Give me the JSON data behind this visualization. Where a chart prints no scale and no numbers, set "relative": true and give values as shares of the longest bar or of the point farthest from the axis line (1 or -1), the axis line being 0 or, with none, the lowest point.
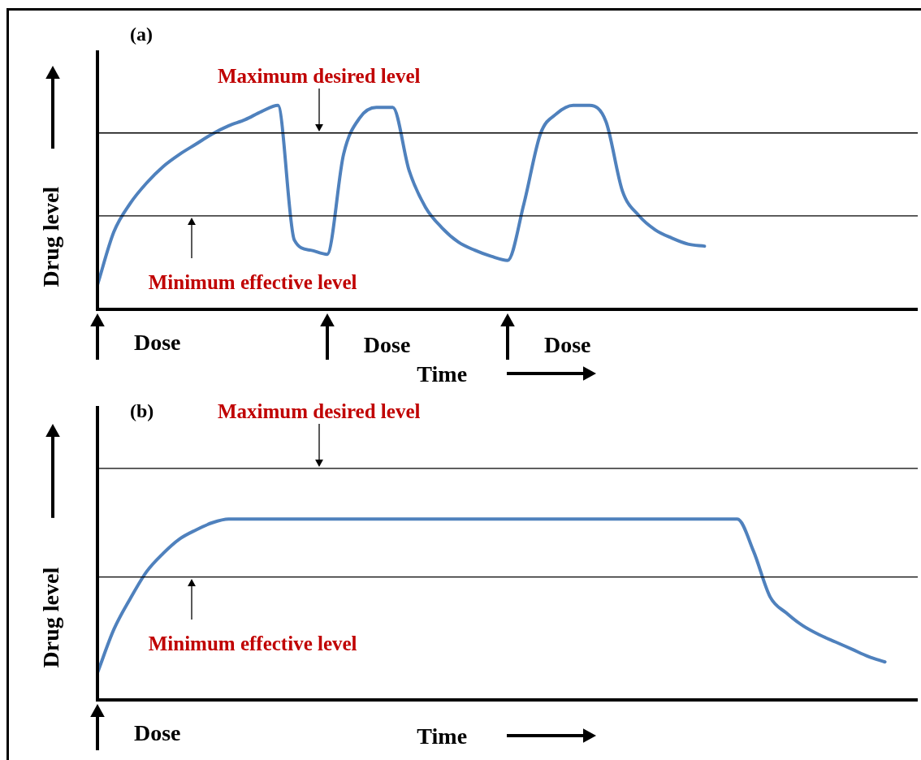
{
  "chart_data": [
    {
      "type": "line",
      "title": "(a)",
      "xlabel": "Time",
      "ylabel": "Drug level",
      "relative": true,
      "tick_labels": false,
      "grid": false,
      "marker": "none",
      "line_style": "solid",
      "categories": [
        null,
        null,
        null,
        null,
        null,
        null,
        null,
        null,
        null,
        null,
        null,
        null,
        null,
        null,
        null,
        null,
        null,
        null,
        null,
        null,
        null,
        null,
        null,
        null,
        null,
        null,
        null,
        null,
        null,
        null,
        null,
        null,
        null,
        null,
        null,
        null,
        null,
        null,
        null,
        null,
        null,
        null,
        null,
        null,
        null,
        null,
        null,
        null,
        null,
        null,
        null
      ],
      "series": [
        {
          "color": "#4f81bd",
          "values": [
            0.12,
            0.38,
            0.52,
            0.62,
            0.7,
            0.76,
            0.81,
            0.86,
            0.9,
            0.93,
            0.97,
            1.0,
            0.34,
            0.29,
            0.27,
            0.76,
            0.94,
            0.99,
            0.99,
            0.68,
            0.5,
            0.4,
            0.33,
            0.29,
            0.26,
            0.24,
            0.52,
            0.86,
            0.96,
            1.0,
            1.0,
            0.92,
            0.58,
            0.46,
            0.39,
            0.35,
            0.32,
            0.31,
            null,
            null,
            null,
            null,
            null,
            null,
            null,
            null,
            null,
            null,
            null,
            null,
            null
          ]
        }
      ],
      "ref_lines": [
        {
          "axis": "y",
          "value": 0.865,
          "label": "Maximum desired level"
        },
        {
          "axis": "y",
          "value": 0.458,
          "label": "Minimum effective level"
        }
      ],
      "annotations": [
        "Dose",
        "Dose",
        "Dose"
      ]
    },
    {
      "type": "line",
      "title": "(b)",
      "xlabel": "Time",
      "ylabel": "Drug level",
      "relative": true,
      "tick_labels": false,
      "grid": false,
      "marker": "none",
      "line_style": "solid",
      "categories": [
        null,
        null,
        null,
        null,
        null,
        null,
        null,
        null,
        null,
        null,
        null,
        null,
        null,
        null,
        null,
        null,
        null,
        null,
        null,
        null,
        null,
        null,
        null,
        null,
        null,
        null,
        null,
        null,
        null,
        null,
        null,
        null,
        null,
        null,
        null,
        null,
        null,
        null,
        null,
        null,
        null,
        null,
        null,
        null,
        null,
        null,
        null,
        null,
        null,
        null,
        null
      ],
      "series": [
        {
          "color": "#4f81bd",
          "values": [
            0.15,
            0.39,
            0.56,
            0.71,
            0.81,
            0.89,
            0.94,
            0.98,
            1.0,
            1.0,
            1.0,
            1.0,
            1.0,
            1.0,
            1.0,
            1.0,
            1.0,
            1.0,
            1.0,
            1.0,
            1.0,
            1.0,
            1.0,
            1.0,
            1.0,
            1.0,
            1.0,
            1.0,
            1.0,
            1.0,
            1.0,
            1.0,
            1.0,
            1.0,
            1.0,
            1.0,
            1.0,
            1.0,
            1.0,
            1.0,
            0.82,
            0.57,
            0.48,
            0.41,
            0.36,
            0.32,
            0.28,
            0.24,
            0.21,
            null,
            null
          ]
        }
      ],
      "ref_lines": [
        {
          "axis": "y",
          "value": 1.28,
          "label": "Maximum desired level"
        },
        {
          "axis": "y",
          "value": 0.68,
          "label": "Minimum effective level"
        }
      ],
      "annotations": [
        "Dose"
      ]
    }
  ]
}
